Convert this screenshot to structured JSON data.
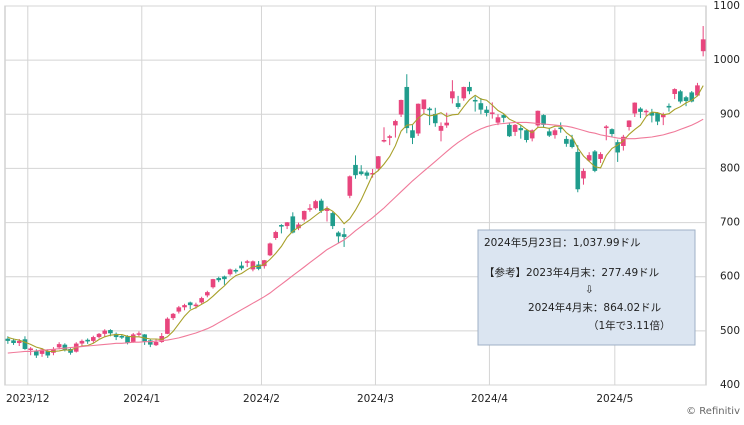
{
  "chart_data": {
    "type": "candlestick",
    "open": [
      485,
      482,
      478,
      484,
      465,
      462,
      458,
      462,
      460,
      470,
      474,
      466,
      462,
      477,
      483,
      482,
      489,
      495,
      501,
      494,
      490,
      489,
      480,
      494,
      493,
      482,
      474,
      480,
      495,
      524,
      536,
      544,
      552,
      548,
      553,
      566,
      581,
      597,
      600,
      605,
      612,
      620,
      628,
      614,
      622,
      620,
      640,
      672,
      695,
      694,
      711,
      690,
      706,
      726,
      727,
      740,
      722,
      717,
      681,
      678,
      750,
      806,
      794,
      792,
      790,
      800,
      852,
      857,
      880,
      900,
      950,
      870,
      865,
      910,
      910,
      900,
      870,
      880,
      930,
      920,
      930,
      950,
      926,
      920,
      908,
      902,
      885,
      898,
      880,
      868,
      874,
      870,
      856,
      880,
      898,
      868,
      862,
      875,
      854,
      853,
      830,
      782,
      815,
      831,
      818,
      875,
      872,
      848,
      842,
      877,
      902,
      910,
      905,
      903,
      902,
      895,
      915,
      938,
      942,
      931,
      940,
      935,
      1017
    ],
    "high": [
      490,
      486,
      485,
      490,
      470,
      466,
      468,
      466,
      470,
      479,
      477,
      468,
      479,
      484,
      486,
      491,
      496,
      503,
      503,
      497,
      494,
      492,
      496,
      499,
      494,
      485,
      485,
      496,
      525,
      533,
      546,
      550,
      554,
      552,
      563,
      574,
      596,
      600,
      602,
      615,
      615,
      628,
      631,
      630,
      629,
      631,
      663,
      685,
      697,
      701,
      719,
      700,
      722,
      734,
      742,
      744,
      730,
      720,
      684,
      690,
      787,
      824,
      806,
      796,
      799,
      823,
      876,
      862,
      890,
      927,
      974,
      880,
      920,
      927,
      913,
      912,
      885,
      903,
      963,
      934,
      951,
      960,
      933,
      930,
      915,
      922,
      900,
      900,
      885,
      882,
      880,
      872,
      872,
      907,
      900,
      875,
      874,
      885,
      860,
      862,
      843,
      800,
      830,
      834,
      830,
      880,
      874,
      853,
      862,
      889,
      922,
      913,
      909,
      910,
      904,
      903,
      920,
      948,
      945,
      934,
      943,
      958,
      1063
    ],
    "low": [
      476,
      474,
      472,
      465,
      455,
      450,
      452,
      450,
      455,
      466,
      462,
      456,
      460,
      473,
      476,
      478,
      486,
      489,
      490,
      483,
      485,
      475,
      478,
      490,
      474,
      470,
      472,
      478,
      494,
      520,
      532,
      538,
      540,
      541,
      550,
      562,
      578,
      590,
      585,
      602,
      606,
      612,
      618,
      610,
      612,
      615,
      638,
      668,
      680,
      688,
      680,
      686,
      702,
      720,
      724,
      718,
      702,
      688,
      662,
      655,
      745,
      781,
      787,
      780,
      783,
      795,
      848,
      843,
      857,
      895,
      865,
      845,
      860,
      900,
      880,
      877,
      850,
      875,
      920,
      910,
      925,
      937,
      905,
      900,
      896,
      892,
      880,
      885,
      858,
      860,
      855,
      848,
      850,
      876,
      875,
      858,
      855,
      866,
      840,
      837,
      756,
      770,
      812,
      793,
      810,
      852,
      858,
      812,
      833,
      870,
      895,
      893,
      897,
      885,
      880,
      880,
      905,
      928,
      920,
      915,
      922,
      933,
      1007
    ],
    "close": [
      482,
      478,
      481,
      467,
      467,
      455,
      465,
      455,
      466,
      475,
      466,
      460,
      476,
      481,
      481,
      488,
      494,
      500,
      496,
      489,
      488,
      479,
      493,
      495,
      481,
      475,
      479,
      490,
      522,
      531,
      543,
      547,
      548,
      548,
      560,
      571,
      595,
      594,
      596,
      613,
      610,
      616,
      628,
      628,
      615,
      630,
      661,
      682,
      693,
      700,
      682,
      696,
      721,
      726,
      739,
      722,
      726,
      694,
      675,
      674,
      785,
      788,
      790,
      787,
      791,
      822,
      852,
      859,
      887,
      926,
      875,
      857,
      919,
      927,
      908,
      884,
      878,
      884,
      942,
      914,
      950,
      943,
      925,
      909,
      903,
      903,
      894,
      894,
      860,
      880,
      871,
      853,
      870,
      906,
      881,
      861,
      870,
      874,
      846,
      840,
      762,
      795,
      824,
      796,
      826,
      877,
      864,
      830,
      858,
      888,
      921,
      905,
      906,
      898,
      887,
      899,
      913,
      946,
      924,
      925,
      924,
      953,
      1038
    ],
    "up_color": "#e8457d",
    "down_color": "#1f9c8c",
    "series": [
      {
        "color": "#a8a02a",
        "values": [
          488,
          485,
          483,
          479,
          475,
          470,
          467,
          462,
          462,
          463,
          465,
          464,
          469,
          472,
          473,
          477,
          484,
          489,
          492,
          493,
          493,
          490,
          489,
          489,
          487,
          485,
          485,
          484,
          489,
          499,
          513,
          527,
          538,
          543,
          549,
          555,
          564,
          574,
          583,
          594,
          602,
          606,
          613,
          619,
          619,
          623,
          632,
          643,
          656,
          673,
          684,
          691,
          698,
          705,
          713,
          721,
          727,
          721,
          711,
          698,
          707,
          723,
          742,
          765,
          788,
          796,
          808,
          822,
          842,
          869,
          880,
          881,
          893,
          901,
          897,
          899,
          903,
          896,
          899,
          900,
          914,
          927,
          935,
          928,
          926,
          917,
          907,
          901,
          891,
          886,
          880,
          872,
          866,
          876,
          876,
          874,
          878,
          878,
          866,
          858,
          838,
          823,
          813,
          803,
          801,
          824,
          837,
          843,
          851,
          863,
          872,
          880,
          896,
          904,
          903,
          899,
          901,
          909,
          914,
          921,
          926,
          934,
          953
        ]
      },
      {
        "color": "#f07a9a",
        "values": [
          459,
          460,
          461,
          462,
          462,
          463,
          464,
          465,
          466,
          467,
          468,
          469,
          470,
          471,
          472,
          473,
          474,
          475,
          476,
          477,
          477,
          478,
          479,
          479,
          480,
          480,
          481,
          482,
          483,
          485,
          487,
          490,
          493,
          496,
          500,
          504,
          509,
          515,
          521,
          527,
          533,
          539,
          545,
          551,
          557,
          563,
          570,
          578,
          586,
          594,
          602,
          610,
          618,
          626,
          634,
          642,
          650,
          656,
          662,
          668,
          676,
          685,
          693,
          701,
          709,
          718,
          727,
          737,
          747,
          757,
          767,
          777,
          786,
          795,
          804,
          813,
          822,
          831,
          840,
          848,
          855,
          862,
          868,
          873,
          877,
          880,
          882,
          883,
          884,
          885,
          885,
          885,
          884,
          883,
          882,
          881,
          880,
          879,
          878,
          876,
          873,
          870,
          867,
          865,
          862,
          860,
          858,
          856,
          855,
          855,
          855,
          856,
          857,
          858,
          860,
          862,
          865,
          868,
          872,
          876,
          880,
          885,
          891
        ]
      }
    ],
    "ylim": [
      400,
      1100
    ],
    "yticks": [
      400,
      500,
      600,
      700,
      800,
      900,
      {
        "value": 1000,
        "label": "1000"
      },
      1100
    ],
    "xticks": [
      {
        "value": 4,
        "label": "2023/12"
      },
      {
        "value": 24,
        "label": "2024/1"
      },
      {
        "value": 45,
        "label": "2024/2"
      },
      {
        "value": 65,
        "label": "2024/3"
      },
      {
        "value": 85,
        "label": "2024/4"
      },
      {
        "value": 107,
        "label": "2024/5"
      }
    ],
    "grid": true,
    "annotations": [
      "2024年5月23日：1,037.99ドル",
      "【参考】2023年4月末：277.49ドル",
      "⇩",
      "2024年4月末：864.02ドル",
      "（1年で3.11倍）"
    ],
    "source": "© Refinitiv"
  }
}
